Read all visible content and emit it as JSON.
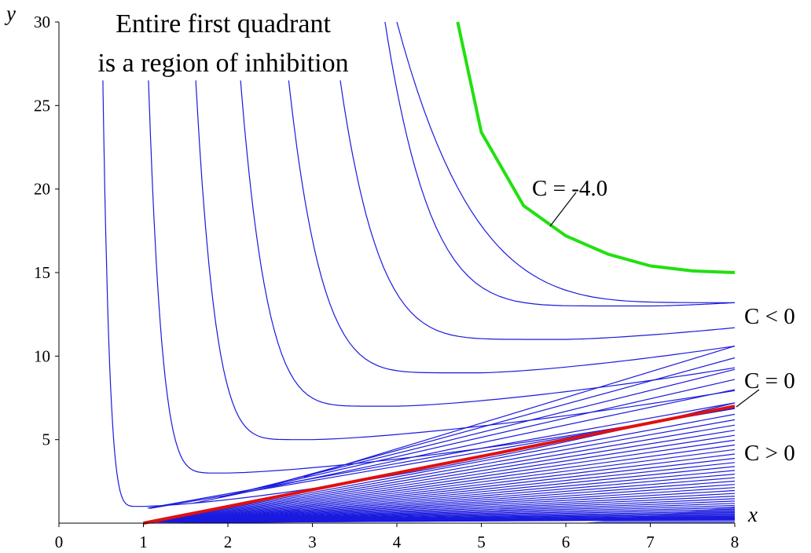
{
  "chart_data": {
    "type": "line",
    "title": "",
    "title_lines": [
      "Entire first quadrant",
      "is a region of inhibition"
    ],
    "xlabel": "x",
    "ylabel": "y",
    "xlim": [
      0,
      8
    ],
    "ylim": [
      0,
      30
    ],
    "xticks": [
      "0",
      "1",
      "2",
      "3",
      "4",
      "5",
      "6",
      "7",
      "8"
    ],
    "yticks": [
      "5",
      "10",
      "15",
      "20",
      "25",
      "30"
    ],
    "grid": false,
    "family": {
      "description_note": "",
      "negative_C_minima": [
        {
          "x": 1.0,
          "y": 1.0
        },
        {
          "x": 2.0,
          "y": 3.0
        },
        {
          "x": 3.0,
          "y": 5.0
        },
        {
          "x": 4.0,
          "y": 7.0
        },
        {
          "x": 5.0,
          "y": 9.0
        },
        {
          "x": 6.0,
          "y": 11.0
        },
        {
          "x": 7.0,
          "y": 13.0
        }
      ],
      "negative_C_right_end_y": [
        10.6,
        11.7,
        13.2
      ],
      "positive_C_count": 40
    },
    "series": [
      {
        "name": "C = -4.0",
        "color": "#22e010",
        "points": [
          [
            4.72,
            30.0
          ],
          [
            5.0,
            23.4
          ],
          [
            5.5,
            19.0
          ],
          [
            6.0,
            17.2
          ],
          [
            6.5,
            16.1
          ],
          [
            7.0,
            15.4
          ],
          [
            7.5,
            15.1
          ],
          [
            8.0,
            15.0
          ]
        ]
      },
      {
        "name": "C = 0",
        "color": "#e01010",
        "points": [
          [
            1.0,
            0.0
          ],
          [
            8.0,
            7.0
          ]
        ]
      }
    ],
    "annotations": [
      "C = -4.0",
      "C < 0",
      "C = 0",
      "C > 0"
    ],
    "colors": {
      "family": "#1a1adf",
      "highlight_neg": "#22e010",
      "highlight_zero": "#e01010"
    }
  }
}
